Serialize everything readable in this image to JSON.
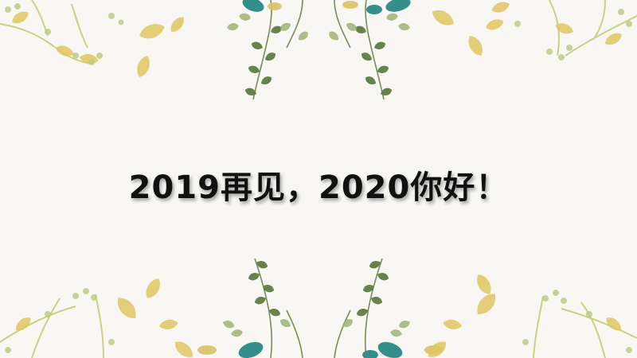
{
  "slide": {
    "title": "2019再见，2020你好！"
  },
  "decoration": {
    "style": "watercolor leaves and branches",
    "colors": {
      "background": "#f8f7f4",
      "olive_leaf": "#7d9a52",
      "dark_leaf": "#3e5a2e",
      "teal_leaf": "#2a8a86",
      "yellow_leaf": "#dfc45a",
      "branch": "#c9cf7a"
    }
  }
}
